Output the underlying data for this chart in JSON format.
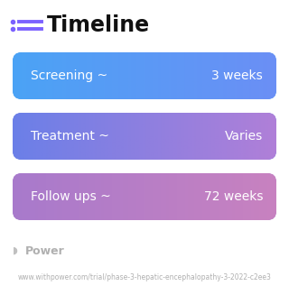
{
  "title": "Timeline",
  "background_color": "#ffffff",
  "rows": [
    {
      "label": "Screening ~",
      "value": "3 weeks",
      "color_left": "#4BA3F5",
      "color_right": "#6B8FF5"
    },
    {
      "label": "Treatment ~",
      "value": "Varies",
      "color_left": "#6B7FE8",
      "color_right": "#B07FD8"
    },
    {
      "label": "Follow ups ~",
      "value": "72 weeks",
      "color_left": "#A87ACC",
      "color_right": "#C882C0"
    }
  ],
  "footer_logo": "Power",
  "footer_url": "www.withpower.com/trial/phase-3-hepatic-encephalopathy-3-2022-c2ee3",
  "icon_color": "#7B61FF",
  "title_fontsize": 17,
  "label_fontsize": 10,
  "value_fontsize": 10,
  "footer_fontsize": 5.5,
  "logo_fontsize": 9
}
